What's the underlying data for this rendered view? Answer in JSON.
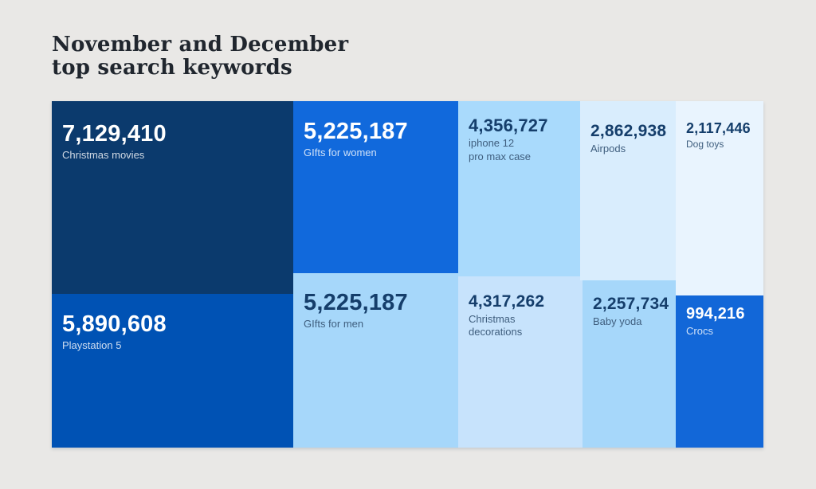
{
  "title": {
    "line1": "November and December",
    "line2": "top search keywords"
  },
  "colors": {
    "background": "#e9e8e6",
    "title_text": "#20262e",
    "dark_cell_text": "#ffffff",
    "light_cell_text": "#153e6b"
  },
  "chart_data": {
    "type": "treemap",
    "title": "November and December top search keywords",
    "legend": "none",
    "items": [
      {
        "slug": "christmas-movies",
        "label": "Christmas movies",
        "value": 7129410,
        "value_display": "7,129,410",
        "color": "#0b3a6d",
        "text_theme": "light"
      },
      {
        "slug": "playstation-5",
        "label": "Playstation 5",
        "value": 5890608,
        "value_display": "5,890,608",
        "color": "#0052b4",
        "text_theme": "light"
      },
      {
        "slug": "gifts-for-women",
        "label": "GIfts for women",
        "value": 5225187,
        "value_display": "5,225,187",
        "color": "#1169dc",
        "text_theme": "light"
      },
      {
        "slug": "gifts-for-men",
        "label": "GIfts for men",
        "value": 5225187,
        "value_display": "5,225,187",
        "color": "#a6d7fa",
        "text_theme": "dark"
      },
      {
        "slug": "iphone-12-pro-max-case",
        "label": "iphone 12\npro max case",
        "value": 4356727,
        "value_display": "4,356,727",
        "color": "#a9dafc",
        "text_theme": "dark"
      },
      {
        "slug": "christmas-decorations",
        "label": "Christmas\ndecorations",
        "value": 4317262,
        "value_display": "4,317,262",
        "color": "#c7e3fc",
        "text_theme": "dark"
      },
      {
        "slug": "airpods",
        "label": "Airpods",
        "value": 2862938,
        "value_display": "2,862,938",
        "color": "#d9edfd",
        "text_theme": "dark"
      },
      {
        "slug": "baby-yoda",
        "label": "Baby yoda",
        "value": 2257734,
        "value_display": "2,257,734",
        "color": "#a6d7fa",
        "text_theme": "dark"
      },
      {
        "slug": "dog-toys",
        "label": "Dog toys",
        "value": 2117446,
        "value_display": "2,117,446",
        "color": "#e9f4fe",
        "text_theme": "dark"
      },
      {
        "slug": "crocs",
        "label": "Crocs",
        "value": 994216,
        "value_display": "994,216",
        "color": "#1267d8",
        "text_theme": "light"
      }
    ]
  }
}
